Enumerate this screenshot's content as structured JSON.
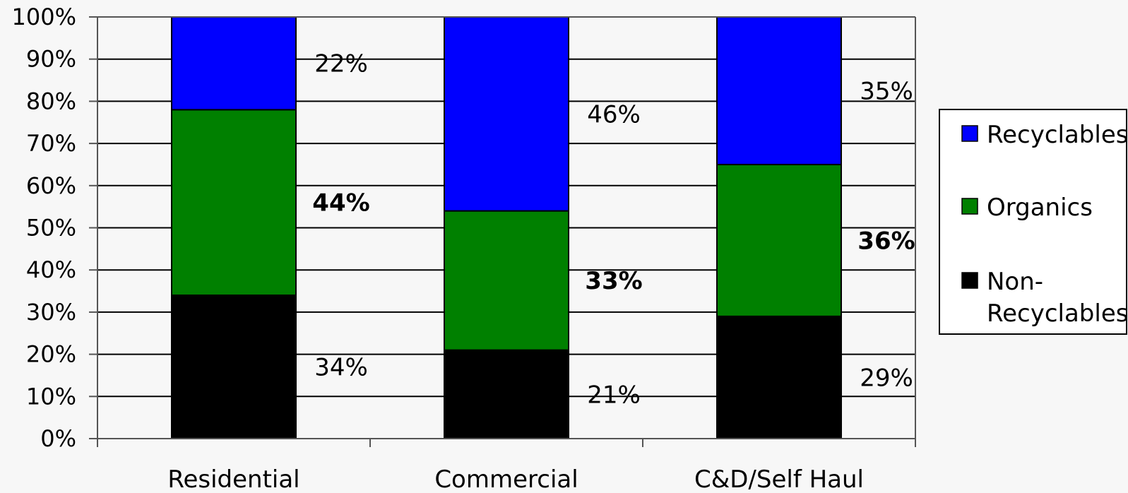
{
  "chart_data": {
    "type": "bar",
    "stacked": true,
    "percent": true,
    "categories": [
      "Residential",
      "Commercial",
      "C&D/Self Haul"
    ],
    "series": [
      {
        "name": "Non-Recyclables",
        "values": [
          34,
          21,
          29
        ],
        "color": "#000000",
        "labels": [
          "34%",
          "21%",
          "29%"
        ],
        "bold": false
      },
      {
        "name": "Organics",
        "values": [
          44,
          33,
          36
        ],
        "color": "#008000",
        "labels": [
          "44%",
          "33%",
          "36%"
        ],
        "bold": true
      },
      {
        "name": "Recyclables",
        "values": [
          22,
          46,
          35
        ],
        "color": "#0000ff",
        "labels": [
          "22%",
          "46%",
          "35%"
        ],
        "bold": false
      }
    ],
    "y_ticks": [
      "0%",
      "10%",
      "20%",
      "30%",
      "40%",
      "50%",
      "60%",
      "70%",
      "80%",
      "90%",
      "100%"
    ],
    "ylim": [
      0,
      100
    ],
    "grid": true,
    "legend": {
      "placement": "right",
      "entries": [
        {
          "lines": [
            "Recyclables"
          ],
          "color": "#0000ff"
        },
        {
          "lines": [
            "Organics"
          ],
          "color": "#008000"
        },
        {
          "lines": [
            "Non-",
            "Recyclables"
          ],
          "color": "#000000"
        }
      ]
    },
    "title": "",
    "xlabel": "",
    "ylabel": ""
  }
}
